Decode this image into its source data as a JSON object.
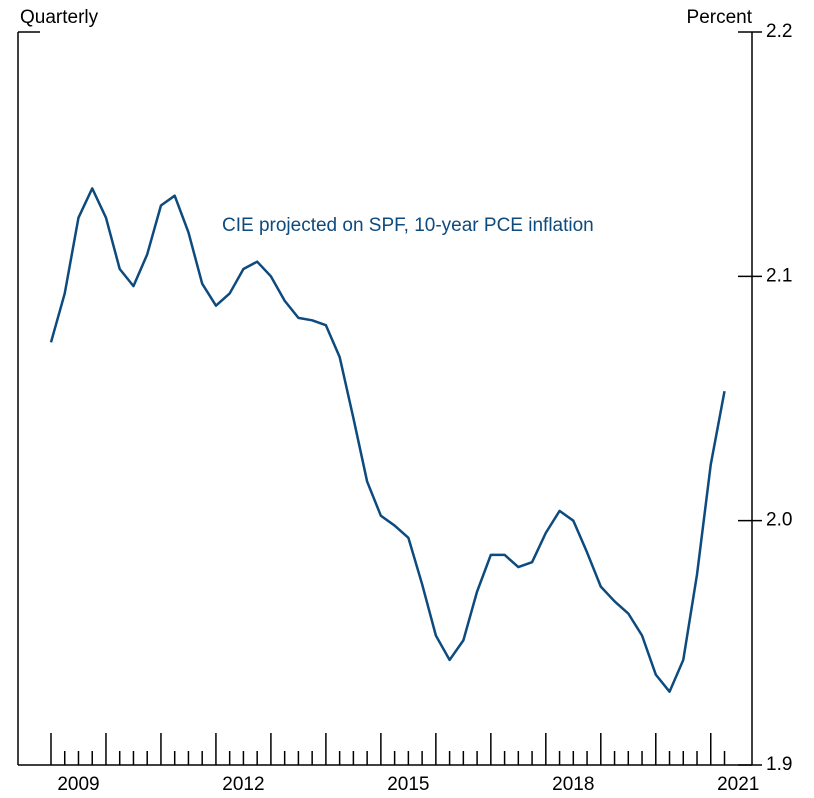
{
  "chart_data": {
    "type": "line",
    "left_label": "Quarterly",
    "right_label": "Percent",
    "annotation": "CIE projected on SPF, 10-year PCE inflation",
    "x": [
      2009,
      2009.25,
      2009.5,
      2009.75,
      2010,
      2010.25,
      2010.5,
      2010.75,
      2011,
      2011.25,
      2011.5,
      2011.75,
      2012,
      2012.25,
      2012.5,
      2012.75,
      2013,
      2013.25,
      2013.5,
      2013.75,
      2014,
      2014.25,
      2014.5,
      2014.75,
      2015,
      2015.25,
      2015.5,
      2015.75,
      2016,
      2016.25,
      2016.5,
      2016.75,
      2017,
      2017.25,
      2017.5,
      2017.75,
      2018,
      2018.25,
      2018.5,
      2018.75,
      2019,
      2019.25,
      2019.5,
      2019.75,
      2020,
      2020.25,
      2020.5,
      2020.75,
      2021,
      2021.25
    ],
    "series": [
      {
        "name": "CIE projected on SPF, 10-year PCE inflation",
        "color": "#0d4a7e",
        "values": [
          2.073,
          2.093,
          2.124,
          2.136,
          2.124,
          2.103,
          2.096,
          2.109,
          2.129,
          2.133,
          2.118,
          2.097,
          2.088,
          2.093,
          2.103,
          2.106,
          2.1,
          2.09,
          2.083,
          2.082,
          2.08,
          2.067,
          2.042,
          2.016,
          2.002,
          1.998,
          1.993,
          1.974,
          1.953,
          1.943,
          1.951,
          1.971,
          1.986,
          1.986,
          1.981,
          1.983,
          1.995,
          2.004,
          2.0,
          1.987,
          1.973,
          1.967,
          1.962,
          1.953,
          1.937,
          1.93,
          1.943,
          1.978,
          2.023,
          2.053
        ]
      }
    ],
    "xlim": [
      2008.4,
      2021.75
    ],
    "xticks": [
      {
        "value": 2009.5,
        "label": "2009"
      },
      {
        "value": 2012.5,
        "label": "2012"
      },
      {
        "value": 2015.5,
        "label": "2015"
      },
      {
        "value": 2018.5,
        "label": "2018"
      },
      {
        "value": 2021.5,
        "label": "2021"
      }
    ],
    "ylim": [
      1.9,
      2.2
    ],
    "yticks": [
      1.9,
      2.0,
      {
        "value": 2.0,
        "label": "2.0"
      },
      2.1,
      2.2
    ]
  }
}
